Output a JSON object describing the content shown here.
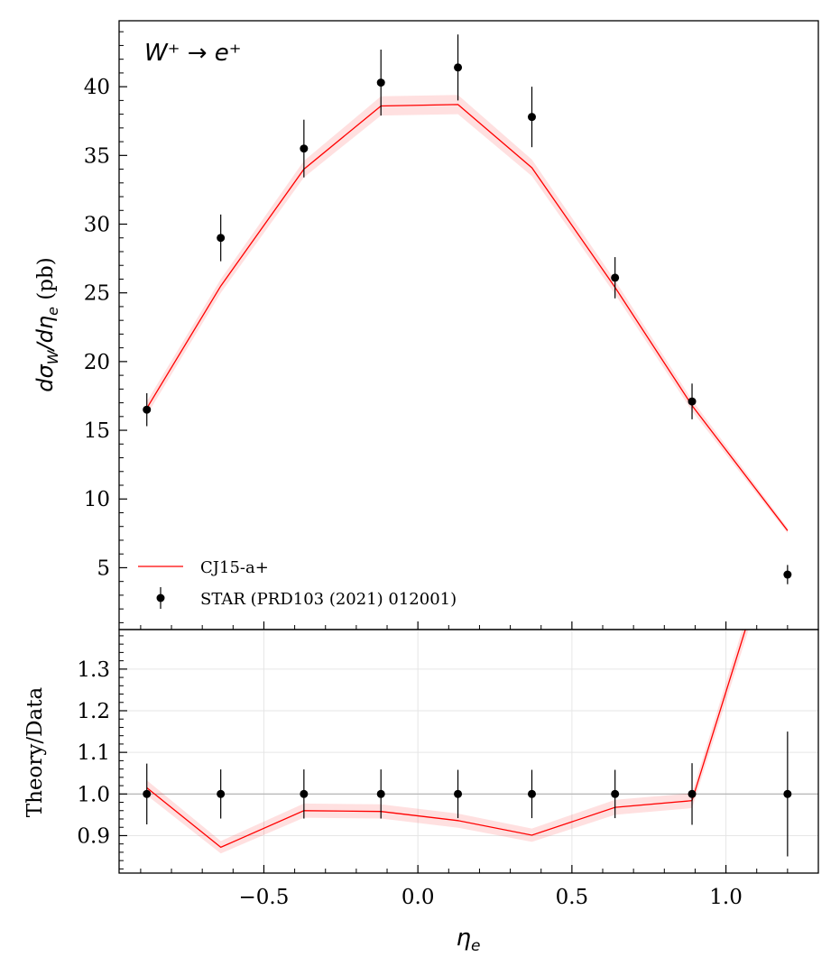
{
  "chart_data": [
    {
      "type": "line",
      "panel": "main",
      "annotation": "W⁺ → e⁺",
      "ylabel": "dσ_W/dη_e (pb)",
      "ylim": [
        0.5,
        44.8
      ],
      "yticks": [
        5,
        10,
        15,
        20,
        25,
        30,
        35,
        40
      ],
      "xlim": [
        -0.97,
        1.3
      ],
      "series": [
        {
          "name": "CJ15-a+",
          "kind": "line-with-band",
          "color": "#ff0000",
          "x": [
            -0.88,
            -0.64,
            -0.37,
            -0.12,
            0.13,
            0.37,
            0.64,
            0.89,
            1.2
          ],
          "y": [
            16.6,
            25.5,
            34.0,
            38.6,
            38.7,
            34.1,
            25.4,
            16.8,
            7.7
          ],
          "band": [
            0.5,
            0.5,
            0.6,
            0.7,
            0.7,
            0.6,
            0.5,
            0.4,
            0.2
          ]
        },
        {
          "name": "STAR (PRD103 (2021) 012001)",
          "kind": "points-with-errors",
          "color": "#000000",
          "x": [
            -0.88,
            -0.64,
            -0.37,
            -0.12,
            0.13,
            0.37,
            0.64,
            0.89,
            1.2
          ],
          "y": [
            16.5,
            29.0,
            35.5,
            40.3,
            41.4,
            37.8,
            26.1,
            17.1,
            4.5
          ],
          "yerr": [
            1.2,
            1.7,
            2.1,
            2.4,
            2.4,
            2.2,
            1.5,
            1.3,
            0.7
          ]
        }
      ],
      "legend_position": "lower-left"
    },
    {
      "type": "line",
      "panel": "ratio",
      "xlabel": "η_e",
      "ylabel": "Theory/Data",
      "ylim": [
        0.81,
        1.395
      ],
      "yticks": [
        "0.9",
        "1.0",
        "1.1",
        "1.2",
        "1.3"
      ],
      "xticks": [
        "−0.5",
        "0.0",
        "0.5",
        "1.0"
      ],
      "xtick_values": [
        -0.5,
        0.0,
        0.5,
        1.0
      ],
      "grid": true,
      "reference_line": 1.0,
      "series": [
        {
          "name": "CJ15-a+",
          "kind": "line-with-band",
          "color": "#ff0000",
          "x": [
            -0.88,
            -0.64,
            -0.37,
            -0.12,
            0.13,
            0.37,
            0.64,
            0.89,
            1.2
          ],
          "y": [
            1.015,
            0.872,
            0.96,
            0.958,
            0.936,
            0.901,
            0.968,
            0.984,
            1.72
          ],
          "band": [
            0.018,
            0.015,
            0.017,
            0.017,
            0.017,
            0.016,
            0.018,
            0.018,
            0.03
          ]
        },
        {
          "name": "STAR (PRD103 (2021) 012001)",
          "kind": "points-with-errors",
          "color": "#000000",
          "x": [
            -0.88,
            -0.64,
            -0.37,
            -0.12,
            0.13,
            0.37,
            0.64,
            0.89,
            1.2
          ],
          "y": [
            1.0,
            1.0,
            1.0,
            1.0,
            1.0,
            1.0,
            1.0,
            1.0,
            1.0
          ],
          "yerr": [
            0.073,
            0.059,
            0.059,
            0.059,
            0.058,
            0.058,
            0.058,
            0.074,
            0.15
          ]
        }
      ]
    }
  ]
}
